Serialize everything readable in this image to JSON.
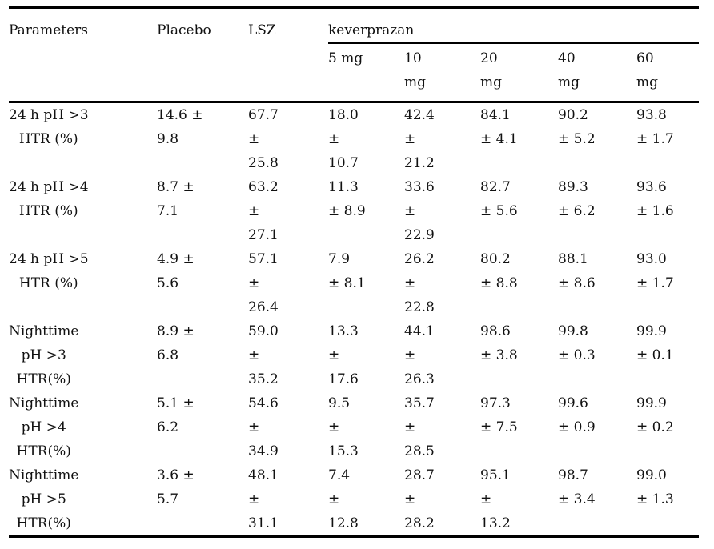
{
  "table": {
    "headers": {
      "parameters": "Parameters",
      "placebo": "Placebo",
      "lsz": "LSZ",
      "keverprazan": "keverprazan"
    },
    "dose_headers": [
      [
        "5 mg"
      ],
      [
        "10",
        "mg"
      ],
      [
        "20",
        "mg"
      ],
      [
        "40",
        "mg"
      ],
      [
        "60",
        "mg"
      ]
    ],
    "rows": [
      {
        "parameter": [
          "24 h pH >3",
          "HTR (%)"
        ],
        "placebo": [
          "14.6 ±",
          "9.8"
        ],
        "lsz": [
          "67.7",
          "±",
          "25.8"
        ],
        "d5": [
          "18.0",
          "±",
          "10.7"
        ],
        "d10": [
          "42.4",
          "±",
          "21.2"
        ],
        "d20": [
          "84.1",
          "± 4.1"
        ],
        "d40": [
          "90.2",
          "± 5.2"
        ],
        "d60": [
          "93.8",
          "± 1.7"
        ]
      },
      {
        "parameter": [
          "24 h pH >4",
          "HTR (%)"
        ],
        "placebo": [
          "8.7 ±",
          "7.1"
        ],
        "lsz": [
          "63.2",
          "±",
          "27.1"
        ],
        "d5": [
          "11.3",
          "± 8.9"
        ],
        "d10": [
          "33.6",
          "±",
          "22.9"
        ],
        "d20": [
          "82.7",
          "± 5.6"
        ],
        "d40": [
          "89.3",
          "± 6.2"
        ],
        "d60": [
          "93.6",
          "± 1.6"
        ]
      },
      {
        "parameter": [
          "24 h pH >5",
          "HTR (%)"
        ],
        "placebo": [
          "4.9 ±",
          "5.6"
        ],
        "lsz": [
          "57.1",
          "±",
          "26.4"
        ],
        "d5": [
          "7.9",
          "± 8.1"
        ],
        "d10": [
          "26.2",
          "±",
          "22.8"
        ],
        "d20": [
          "80.2",
          "± 8.8"
        ],
        "d40": [
          "88.1",
          "± 8.6"
        ],
        "d60": [
          "93.0",
          "± 1.7"
        ]
      },
      {
        "parameter": [
          "Nighttime",
          "pH >3",
          "HTR(%)"
        ],
        "placebo": [
          "8.9 ±",
          "6.8"
        ],
        "lsz": [
          "59.0",
          "±",
          "35.2"
        ],
        "d5": [
          "13.3",
          "±",
          "17.6"
        ],
        "d10": [
          "44.1",
          "±",
          "26.3"
        ],
        "d20": [
          "98.6",
          "± 3.8"
        ],
        "d40": [
          "99.8",
          "± 0.3"
        ],
        "d60": [
          "99.9",
          "± 0.1"
        ]
      },
      {
        "parameter": [
          "Nighttime",
          "pH >4",
          "HTR(%)"
        ],
        "placebo": [
          "5.1 ±",
          "6.2"
        ],
        "lsz": [
          "54.6",
          "±",
          "34.9"
        ],
        "d5": [
          "9.5",
          "±",
          "15.3"
        ],
        "d10": [
          "35.7",
          "±",
          "28.5"
        ],
        "d20": [
          "97.3",
          "± 7.5"
        ],
        "d40": [
          "99.6",
          "± 0.9"
        ],
        "d60": [
          "99.9",
          "± 0.2"
        ]
      },
      {
        "parameter": [
          "Nighttime",
          "pH >5",
          "HTR(%)"
        ],
        "placebo": [
          "3.6 ±",
          "5.7"
        ],
        "lsz": [
          "48.1",
          "±",
          "31.1"
        ],
        "d5": [
          "7.4",
          "±",
          "12.8"
        ],
        "d10": [
          "28.7",
          "±",
          "28.2"
        ],
        "d20": [
          "95.1",
          "±",
          "13.2"
        ],
        "d40": [
          "98.7",
          "± 3.4"
        ],
        "d60": [
          "99.0",
          "± 1.3"
        ]
      }
    ]
  }
}
